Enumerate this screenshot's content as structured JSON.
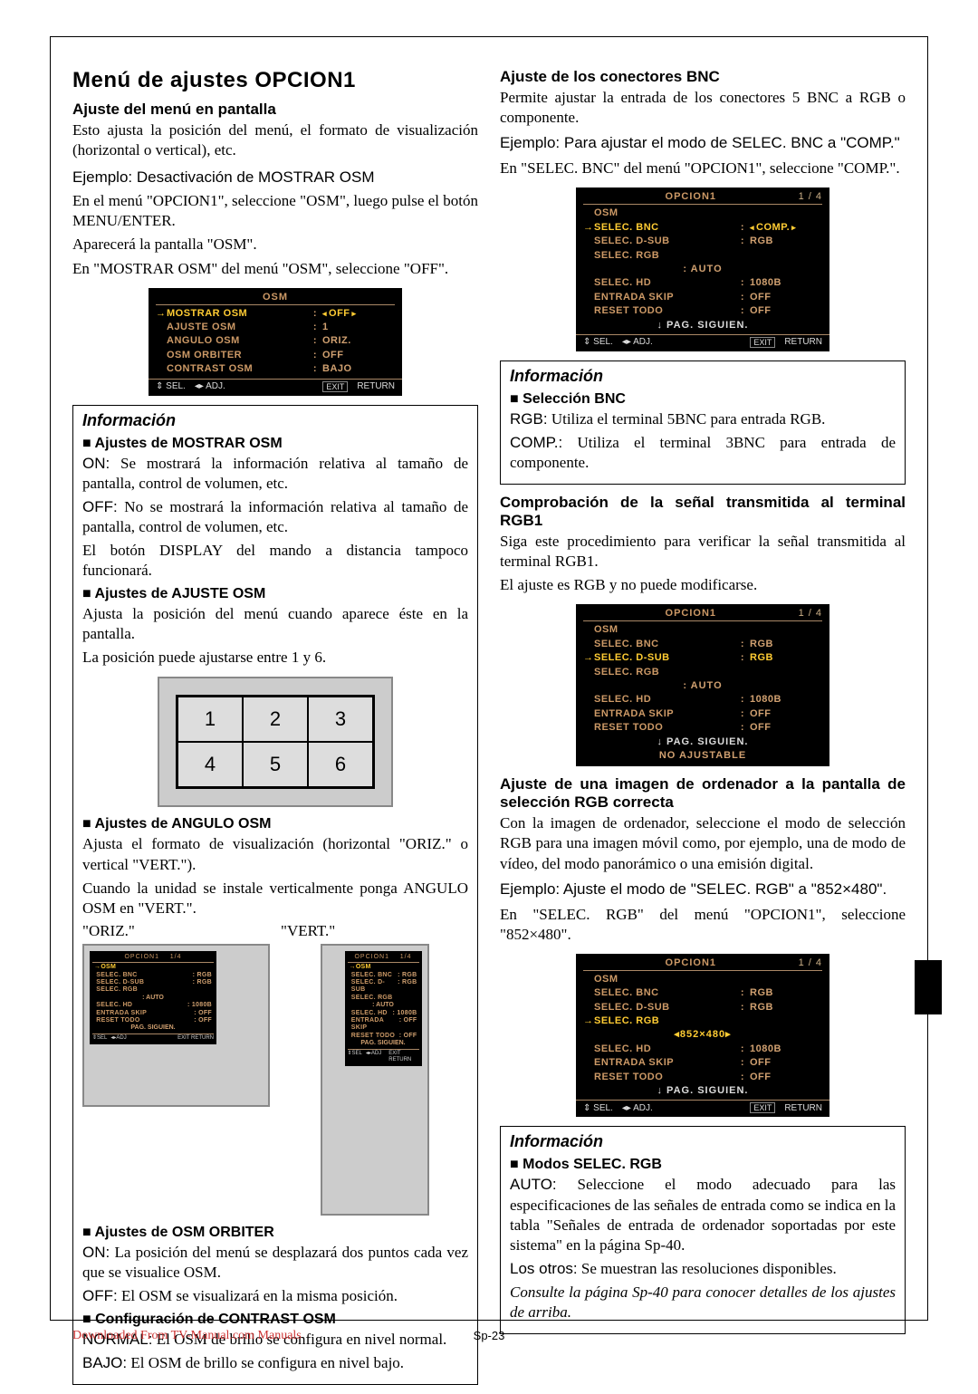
{
  "heading": "Menú de ajustes OPCION1",
  "left": {
    "h1": "Ajuste del menú en pantalla",
    "p1": "Esto ajusta la posición del menú, el formato de visualización (horizontal o vertical), etc.",
    "p2": "Ejemplo: Desactivación de MOSTRAR OSM",
    "p3": "En el menú \"OPCION1\", seleccione \"OSM\", luego pulse el botón MENU/ENTER.",
    "p4": "Aparecerá la pantalla \"OSM\".",
    "p5": "En \"MOSTRAR OSM\" del menú \"OSM\", seleccione \"OFF\".",
    "osd1": {
      "title": "OSM",
      "rows": [
        {
          "sel": true,
          "label": "MOSTRAR OSM",
          "val": "OFF",
          "tri": true
        },
        {
          "label": "AJUSTE OSM",
          "val": "1"
        },
        {
          "label": "ANGULO OSM",
          "val": "ORIZ."
        },
        {
          "label": "OSM ORBITER",
          "val": "OFF"
        },
        {
          "label": "CONTRAST OSM",
          "val": "BAJO"
        }
      ],
      "footer": {
        "sel": "SEL.",
        "adj": "ADJ.",
        "ret": "RETURN",
        "exit": "EXIT"
      }
    },
    "info1": {
      "title": "Información",
      "s1": "Ajustes de MOSTRAR OSM",
      "s1_on": "ON:",
      "s1_on_t": " Se mostrará la información relativa al tamaño de pantalla, control de volumen, etc.",
      "s1_off": "OFF:",
      "s1_off_t": " No se mostrará la información relativa al tamaño de pantalla, control de volumen, etc.",
      "s1_p": "El botón DISPLAY del mando a distancia tampoco funcionará.",
      "s2": "Ajustes de AJUSTE OSM",
      "s2_p1": "Ajusta la posición del menú cuando aparece éste en la pantalla.",
      "s2_p2": "La posición puede ajustarse entre 1 y 6.",
      "grid": [
        "1",
        "2",
        "3",
        "4",
        "5",
        "6"
      ],
      "s3": "Ajustes de ANGULO OSM",
      "s3_p1": "Ajusta el formato de visualización (horizontal \"ORIZ.\" o vertical \"VERT.\").",
      "s3_p2": "Cuando la unidad se instale verticalmente ponga ANGULO OSM en \"VERT.\".",
      "oriz": "\"ORIZ.\"",
      "vert": "\"VERT.\"",
      "s4": "Ajustes de OSM ORBITER",
      "s4_on": "ON:",
      "s4_on_t": " La posición del menú se desplazará dos puntos cada vez que se visualice OSM.",
      "s4_off": "OFF:",
      "s4_off_t": " El OSM se visualizará en la misma posición.",
      "s5": "Configuración de CONTRAST OSM",
      "s5_n": "NORMAL:",
      "s5_n_t": " El OSM de brillo se configura en nivel normal.",
      "s5_b": "BAJO:",
      "s5_b_t": " El OSM de brillo se configura en nivel bajo."
    },
    "mini_osd": {
      "title": "OPCION1",
      "page": "1/4",
      "rows": [
        {
          "sel": true,
          "label": "OSM",
          "val": ""
        },
        {
          "label": "SELEC. BNC",
          "val": "RGB"
        },
        {
          "label": "SELEC. D-SUB",
          "val": "RGB"
        },
        {
          "label": "SELEC. RGB",
          "val": ""
        },
        {
          "center": ": AUTO"
        },
        {
          "label": "SELEC. HD",
          "val": "1080B"
        },
        {
          "label": "ENTRADA SKIP",
          "val": "OFF"
        },
        {
          "label": "RESET TODO",
          "val": "OFF"
        },
        {
          "center": "PAG. SIGUIEN."
        }
      ]
    }
  },
  "right": {
    "h1": "Ajuste de los conectores BNC",
    "p1": "Permite ajustar la entrada de los conectores 5 BNC a RGB o componente.",
    "p2": "Ejemplo: Para ajustar el modo de SELEC. BNC a \"COMP.\"",
    "p3": "En \"SELEC. BNC\" del menú \"OPCION1\", seleccione \"COMP.\".",
    "osd1": {
      "title": "OPCION1",
      "page": "1 / 4",
      "rows": [
        {
          "label": "OSM",
          "val": ""
        },
        {
          "sel": true,
          "label": "SELEC. BNC",
          "val": "COMP.",
          "tri": true
        },
        {
          "label": "SELEC. D-SUB",
          "val": "RGB"
        },
        {
          "label": "SELEC. RGB",
          "val": ""
        },
        {
          "center": ": AUTO"
        },
        {
          "label": "SELEC. HD",
          "val": "1080B"
        },
        {
          "label": "ENTRADA SKIP",
          "val": "OFF"
        },
        {
          "label": "RESET TODO",
          "val": "OFF"
        },
        {
          "center": "↓ PAG. SIGUIEN.",
          "white": true
        }
      ]
    },
    "info1": {
      "title": "Información",
      "s1": "Selección BNC",
      "rgb": "RGB:",
      "rgb_t": " Utiliza el terminal 5BNC para entrada RGB.",
      "comp": "COMP.:",
      "comp_t": " Utiliza el terminal 3BNC para entrada de componente."
    },
    "h2": "Comprobación de la señal transmitida al terminal RGB1",
    "p4": "Siga este procedimiento para verificar la señal transmitida al terminal RGB1.",
    "p5": "El ajuste es RGB y no puede modificarse.",
    "osd2": {
      "title": "OPCION1",
      "page": "1 / 4",
      "rows": [
        {
          "label": "OSM",
          "val": ""
        },
        {
          "label": "SELEC. BNC",
          "val": "RGB"
        },
        {
          "sel": true,
          "label": "SELEC. D-SUB",
          "val": "RGB"
        },
        {
          "label": "SELEC. RGB",
          "val": ""
        },
        {
          "center": ": AUTO"
        },
        {
          "label": "SELEC. HD",
          "val": "1080B"
        },
        {
          "label": "ENTRADA SKIP",
          "val": "OFF"
        },
        {
          "label": "RESET TODO",
          "val": "OFF"
        },
        {
          "center": "↓ PAG. SIGUIEN.",
          "white": true
        },
        {
          "center": "NO AJUSTABLE",
          "dim": true
        }
      ]
    },
    "h3": "Ajuste de una imagen de ordenador a la pantalla de selección RGB correcta",
    "p6": "Con la imagen de ordenador, seleccione el modo de selección RGB para una imagen móvil como, por ejemplo, una de modo de vídeo, del modo panorámico o una emisión digital.",
    "p7": "Ejemplo: Ajuste el modo de \"SELEC. RGB\" a \"852×480\".",
    "p8": "En \"SELEC. RGB\" del menú \"OPCION1\", seleccione \"852×480\".",
    "osd3": {
      "title": "OPCION1",
      "page": "1 / 4",
      "rows": [
        {
          "label": "OSM",
          "val": ""
        },
        {
          "label": "SELEC. BNC",
          "val": "RGB"
        },
        {
          "label": "SELEC. D-SUB",
          "val": "RGB"
        },
        {
          "sel": true,
          "label": "SELEC. RGB",
          "val": ""
        },
        {
          "center": "◂852×480▸",
          "sel": true
        },
        {
          "label": "SELEC. HD",
          "val": "1080B"
        },
        {
          "label": "ENTRADA SKIP",
          "val": "OFF"
        },
        {
          "label": "RESET TODO",
          "val": "OFF"
        },
        {
          "center": "↓ PAG. SIGUIEN.",
          "white": true
        }
      ]
    },
    "info2": {
      "title": "Información",
      "s1": "Modos SELEC. RGB",
      "auto": "AUTO:",
      "auto_t": " Seleccione el modo adecuado para las especificaciones de las señales de entrada como se indica en la tabla \"Señales de entrada de ordenador soportadas por este sistema\" en la página Sp-40.",
      "otros": "Los otros:",
      "otros_t": " Se muestran las resoluciones disponibles.",
      "note": "Consulte la página Sp-40 para conocer detalles de los ajustes de arriba."
    }
  },
  "footer": {
    "left": "Downloaded From TV-Manual.com Manuals",
    "center": "Sp-23"
  }
}
